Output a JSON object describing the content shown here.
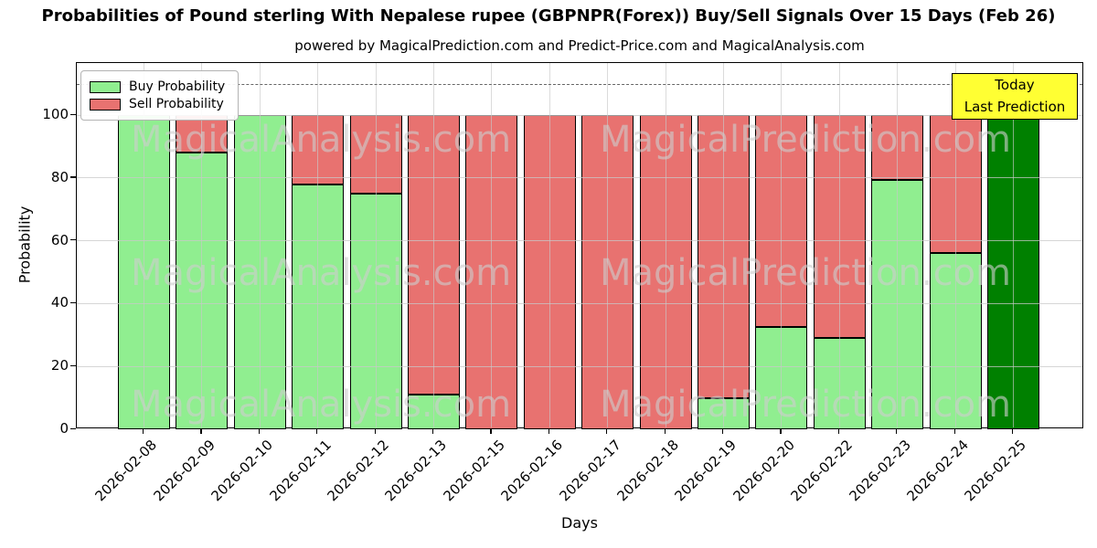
{
  "title": "Probabilities of Pound sterling With Nepalese rupee (GBPNPR(Forex)) Buy/Sell Signals Over 15 Days (Feb 26)",
  "subtitle": "powered by MagicalPrediction.com and Predict-Price.com and MagicalAnalysis.com",
  "axes": {
    "x_label": "Days",
    "y_label": "Probability",
    "y_ticks": [
      0,
      20,
      40,
      60,
      80,
      100
    ]
  },
  "legend": {
    "items": [
      {
        "label": "Buy Probability",
        "color": "#90ee90"
      },
      {
        "label": "Sell Probability",
        "color": "#e87270"
      }
    ]
  },
  "annotation": {
    "line1": "Today",
    "line2": "Last Prediction",
    "bg_color": "#ffff33"
  },
  "watermarks": {
    "left_text": "MagicalAnalysis.com",
    "right_text": "MagicalPrediction.com"
  },
  "chart_data": {
    "type": "bar",
    "stacked": true,
    "title": "Probabilities of Pound sterling With Nepalese rupee (GBPNPR(Forex)) Buy/Sell Signals Over 15 Days (Feb 26)",
    "xlabel": "Days",
    "ylabel": "Probability",
    "ylim": [
      0,
      116.6
    ],
    "grid": true,
    "legend_position": "upper left",
    "dashed_line_y": 110,
    "categories": [
      "2026-02-08",
      "2026-02-09",
      "2026-02-10",
      "2026-02-11",
      "2026-02-12",
      "2026-02-13",
      "2026-02-15",
      "2026-02-16",
      "2026-02-17",
      "2026-02-18",
      "2026-02-19",
      "2026-02-20",
      "2026-02-22",
      "2026-02-23",
      "2026-02-24",
      "2026-02-25"
    ],
    "series": [
      {
        "name": "Buy Probability",
        "color": "#90ee90",
        "values": [
          100,
          88,
          100,
          78,
          75,
          11,
          0,
          0,
          0,
          0,
          10,
          32.5,
          29,
          79.5,
          56,
          100
        ]
      },
      {
        "name": "Sell Probability",
        "color": "#e87270",
        "values": [
          0,
          12,
          0,
          22,
          25,
          89,
          100,
          100,
          100,
          100,
          90,
          67.5,
          71,
          20.5,
          44,
          0
        ]
      }
    ],
    "today_index": 15,
    "today_color": "#008000"
  },
  "colors": {
    "buy": "#90ee90",
    "sell": "#e87270",
    "today": "#008000",
    "annotation_bg": "#ffff33",
    "grid": "#c8c8c8",
    "dashed": "#666666"
  }
}
